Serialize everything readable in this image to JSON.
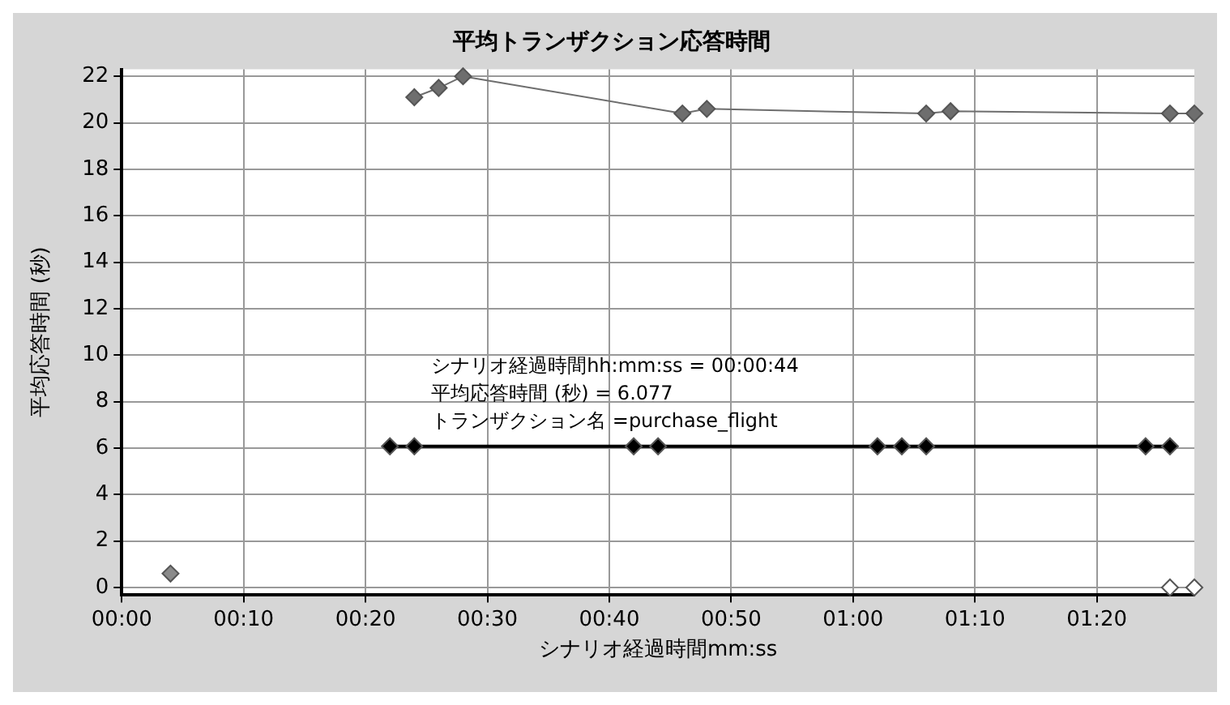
{
  "chart_data": {
    "type": "line",
    "title": "平均トランザクション応答時間",
    "xlabel": "シナリオ経過時間mm:ss",
    "ylabel": "平均応答時間 (秒)",
    "xlim": [
      0,
      88
    ],
    "xticks": [
      {
        "value": 0,
        "label": "00:00"
      },
      {
        "value": 10,
        "label": "00:10"
      },
      {
        "value": 20,
        "label": "00:20"
      },
      {
        "value": 30,
        "label": "00:30"
      },
      {
        "value": 40,
        "label": "00:40"
      },
      {
        "value": 50,
        "label": "00:50"
      },
      {
        "value": 60,
        "label": "01:00"
      },
      {
        "value": 70,
        "label": "01:10"
      },
      {
        "value": 80,
        "label": "01:20"
      }
    ],
    "ylim": [
      -0.3,
      22.3
    ],
    "yticks": [
      0,
      2,
      4,
      6,
      8,
      10,
      12,
      14,
      16,
      18,
      20,
      22
    ],
    "grid": true,
    "marker": "diamond",
    "line_style": "solid",
    "series": [
      {
        "color": "#000000",
        "x": [
          22,
          24,
          42,
          44,
          62,
          64,
          66,
          84,
          86
        ],
        "values": [
          6.077,
          6.077,
          6.077,
          6.077,
          6.077,
          6.077,
          6.077,
          6.077,
          6.077
        ]
      },
      {
        "color": "#6e6e6e",
        "x": [
          24,
          26,
          28,
          46,
          48,
          66,
          68,
          86,
          88
        ],
        "values": [
          21.1,
          21.5,
          22.0,
          20.4,
          20.6,
          20.4,
          20.5,
          20.4,
          20.4
        ]
      },
      {
        "type": "scatter",
        "color": "#8a8a8a",
        "x": [
          4
        ],
        "values": [
          0.6
        ]
      },
      {
        "type": "scatter",
        "color": "#ffffff",
        "x": [
          86,
          88
        ],
        "values": [
          0,
          0
        ]
      }
    ],
    "annotations": [
      {
        "text": "シナリオ経過時間hh:mm:ss = 00:00:44\n平均応答時間 (秒) = 6.077\nトランザクション名 =purchase_flight",
        "x": 44,
        "y": 6.077
      }
    ]
  }
}
